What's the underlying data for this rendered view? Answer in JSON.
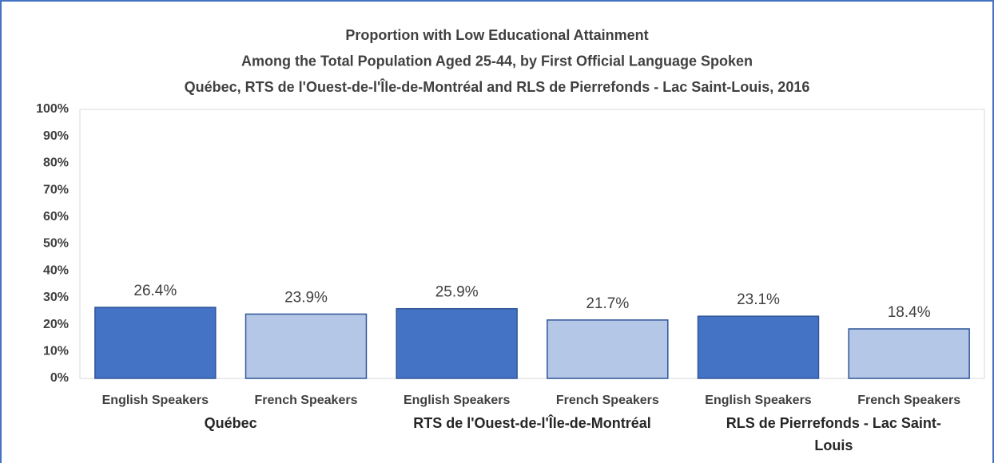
{
  "chart_data": {
    "type": "bar",
    "title": [
      "Proportion with Low Educational Attainment",
      "Among the Total Population Aged 25-44, by First Official Language Spoken",
      "Québec, RTS de l'Ouest-de-l'Île-de-Montréal and RLS de Pierrefonds - Lac Saint-Louis, 2016"
    ],
    "categories": [
      "English Speakers",
      "French Speakers",
      "English Speakers",
      "French Speakers",
      "English Speakers",
      "French Speakers"
    ],
    "groups": [
      "Québec",
      "RTS de l'Ouest-de-l'Île-de-Montréal",
      "RLS de Pierrefonds - Lac Saint-Louis"
    ],
    "values": [
      26.4,
      23.9,
      25.9,
      21.7,
      23.1,
      18.4
    ],
    "value_labels": [
      "26.4%",
      "23.9%",
      "25.9%",
      "21.7%",
      "23.1%",
      "18.4%"
    ],
    "colors": [
      "#4472c4",
      "#b4c7e7",
      "#4472c4",
      "#b4c7e7",
      "#4472c4",
      "#b4c7e7"
    ],
    "ylim": [
      0,
      100
    ],
    "yticks": [
      {
        "value": 0,
        "label": "0%"
      },
      {
        "value": 10,
        "label": "10%"
      },
      {
        "value": 20,
        "label": "20%"
      },
      {
        "value": 30,
        "label": "30%"
      },
      {
        "value": 40,
        "label": "40%"
      },
      {
        "value": 50,
        "label": "50%"
      },
      {
        "value": 60,
        "label": "60%"
      },
      {
        "value": 70,
        "label": "70%"
      },
      {
        "value": 80,
        "label": "80%"
      },
      {
        "value": 90,
        "label": "90%"
      },
      {
        "value": 100,
        "label": "100%"
      }
    ],
    "grid": false
  }
}
